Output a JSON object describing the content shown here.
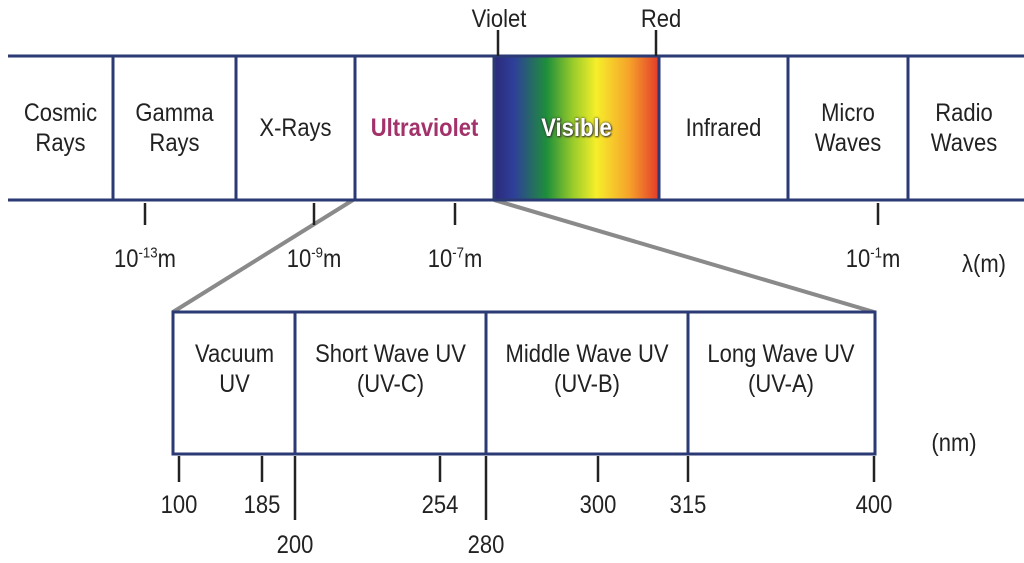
{
  "colors": {
    "frame": "#2b3a75",
    "ultraviolet_text": "#a3326b",
    "connector": "#8a8a8a",
    "visible_gradient": [
      "#2b2a7a",
      "#2e3f9a",
      "#1e8f3a",
      "#9acc2a",
      "#f6ee2a",
      "#f6a22a",
      "#e23a2a"
    ]
  },
  "spectrum": {
    "top_markers": {
      "violet": "Violet",
      "red": "Red"
    },
    "bands": [
      {
        "line1": "Cosmic",
        "line2": "Rays"
      },
      {
        "line1": "Gamma",
        "line2": "Rays"
      },
      {
        "line1": "X-Rays",
        "line2": ""
      },
      {
        "line1": "Ultraviolet",
        "line2": ""
      },
      {
        "line1": "Visible",
        "line2": ""
      },
      {
        "line1": "Infrared",
        "line2": ""
      },
      {
        "line1": "Micro",
        "line2": "Waves"
      },
      {
        "line1": "Radio",
        "line2": "Waves"
      }
    ],
    "scale": [
      {
        "base": "10",
        "exp": "-13",
        "unit": "m"
      },
      {
        "base": "10",
        "exp": "-9",
        "unit": "m"
      },
      {
        "base": "10",
        "exp": "-7",
        "unit": "m"
      },
      {
        "base": "10",
        "exp": "-1",
        "unit": "m"
      }
    ],
    "axis_label": "λ(m)"
  },
  "uv_detail": {
    "bands": [
      {
        "line1": "Vacuum",
        "line2": "UV"
      },
      {
        "line1": "Short Wave UV",
        "line2": "(UV-C)"
      },
      {
        "line1": "Middle Wave UV",
        "line2": "(UV-B)"
      },
      {
        "line1": "Long Wave UV",
        "line2": "(UV-A)"
      }
    ],
    "ticks": [
      "100",
      "185",
      "200",
      "254",
      "280",
      "300",
      "315",
      "400"
    ],
    "unit": "(nm)"
  }
}
